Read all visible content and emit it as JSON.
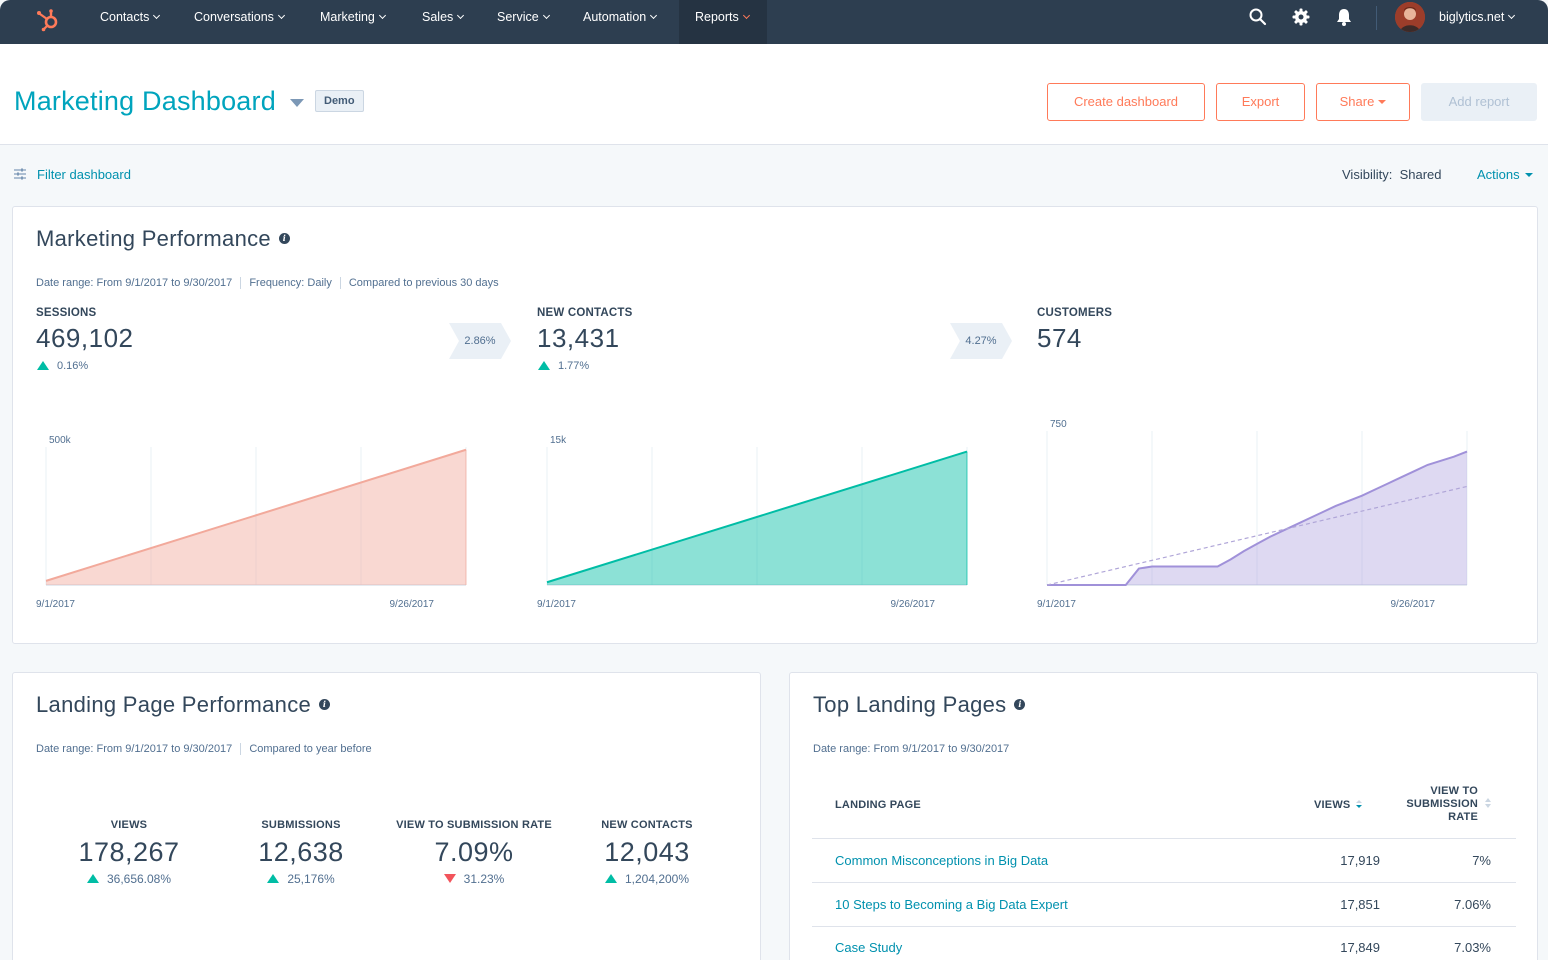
{
  "nav": {
    "items": [
      {
        "label": "Contacts"
      },
      {
        "label": "Conversations"
      },
      {
        "label": "Marketing"
      },
      {
        "label": "Sales"
      },
      {
        "label": "Service"
      },
      {
        "label": "Automation"
      },
      {
        "label": "Reports"
      }
    ],
    "account": "biglytics.net",
    "icons": [
      "hubspot-logo",
      "search-icon",
      "gear-icon",
      "bell-icon",
      "avatar"
    ],
    "colors": {
      "bar": "#2d3e50",
      "active": "#253342",
      "accent": "#ff7a59"
    }
  },
  "header": {
    "title": "Marketing Dashboard",
    "badge": "Demo",
    "buttons": {
      "create": "Create dashboard",
      "export": "Export",
      "share": "Share",
      "add_report": "Add report"
    }
  },
  "filter": {
    "label": "Filter dashboard",
    "visibility_label": "Visibility:",
    "visibility_value": "Shared",
    "actions": "Actions"
  },
  "marketing_performance": {
    "title": "Marketing Performance",
    "date_range": "Date range:  From 9/1/2017 to 9/30/2017",
    "frequency": "Frequency:  Daily",
    "compared": "Compared to previous 30 days",
    "kpis": [
      {
        "label": "SESSIONS",
        "value": "469,102",
        "change": "0.16%",
        "direction": "up"
      },
      {
        "label": "NEW CONTACTS",
        "value": "13,431",
        "change": "1.77%",
        "direction": "up"
      },
      {
        "label": "CUSTOMERS",
        "value": "574"
      }
    ],
    "conversions": [
      "2.86%",
      "4.27%"
    ]
  },
  "chart_data": [
    {
      "type": "area",
      "series": [
        {
          "name": "Sessions",
          "color": "#f2a99b"
        }
      ],
      "x": [
        "9/1/2017",
        "9/26/2017"
      ],
      "values": [
        15000,
        490000
      ],
      "ylim": [
        0,
        500000
      ],
      "y_tick_label": "500k",
      "x_tick_labels": [
        "9/1/2017",
        "9/26/2017"
      ]
    },
    {
      "type": "area",
      "series": [
        {
          "name": "New contacts",
          "color": "#00bda5"
        }
      ],
      "x": [
        "9/1/2017",
        "9/26/2017"
      ],
      "values": [
        300,
        14500
      ],
      "ylim": [
        0,
        15000
      ],
      "y_tick_label": "15k",
      "x_tick_labels": [
        "9/1/2017",
        "9/26/2017"
      ]
    },
    {
      "type": "area",
      "series": [
        {
          "name": "Customers",
          "color": "#a091d9",
          "values": [
            0,
            0,
            0,
            0,
            0,
            0,
            0,
            80,
            90,
            90,
            90,
            90,
            90,
            90,
            125,
            165,
            200,
            235,
            265,
            295,
            325,
            355,
            385,
            410,
            435,
            465,
            495,
            525,
            555,
            585,
            605,
            625,
            650
          ]
        },
        {
          "name": "Previous period",
          "color": "#b0a6d8",
          "values": [
            0,
            15,
            30,
            45,
            60,
            75,
            90,
            105,
            120,
            135,
            150,
            165,
            180,
            195,
            210,
            225,
            240,
            255,
            270,
            285,
            300,
            315,
            330,
            345,
            360,
            375,
            390,
            405,
            420,
            435,
            450,
            465,
            480
          ]
        }
      ],
      "ylim": [
        0,
        750
      ],
      "y_tick_label": "750",
      "x_tick_labels": [
        "9/1/2017",
        "9/26/2017"
      ]
    }
  ],
  "landing_page_performance": {
    "title": "Landing Page Performance",
    "date_range": "Date range:  From 9/1/2017 to 9/30/2017",
    "compared": "Compared to year before",
    "kpis": [
      {
        "label": "VIEWS",
        "value": "178,267",
        "change": "36,656.08%",
        "direction": "up"
      },
      {
        "label": "SUBMISSIONS",
        "value": "12,638",
        "change": "25,176%",
        "direction": "up"
      },
      {
        "label": "VIEW TO SUBMISSION RATE",
        "value": "7.09%",
        "change": "31.23%",
        "direction": "down"
      },
      {
        "label": "NEW CONTACTS",
        "value": "12,043",
        "change": "1,204,200%",
        "direction": "up"
      }
    ]
  },
  "top_landing_pages": {
    "title": "Top Landing Pages",
    "date_range": "Date range:  From 9/1/2017 to 9/30/2017",
    "columns": {
      "page": "LANDING PAGE",
      "views": "VIEWS",
      "rate_1": "VIEW TO",
      "rate_2": "SUBMISSION",
      "rate_3": "RATE"
    },
    "rows": [
      {
        "page": "Common Misconceptions in Big Data",
        "views": "17,919",
        "rate": "7%"
      },
      {
        "page": "10 Steps to Becoming a Big Data Expert",
        "views": "17,851",
        "rate": "7.06%"
      },
      {
        "page": "Case Study",
        "views": "17,849",
        "rate": "7.03%"
      }
    ]
  }
}
